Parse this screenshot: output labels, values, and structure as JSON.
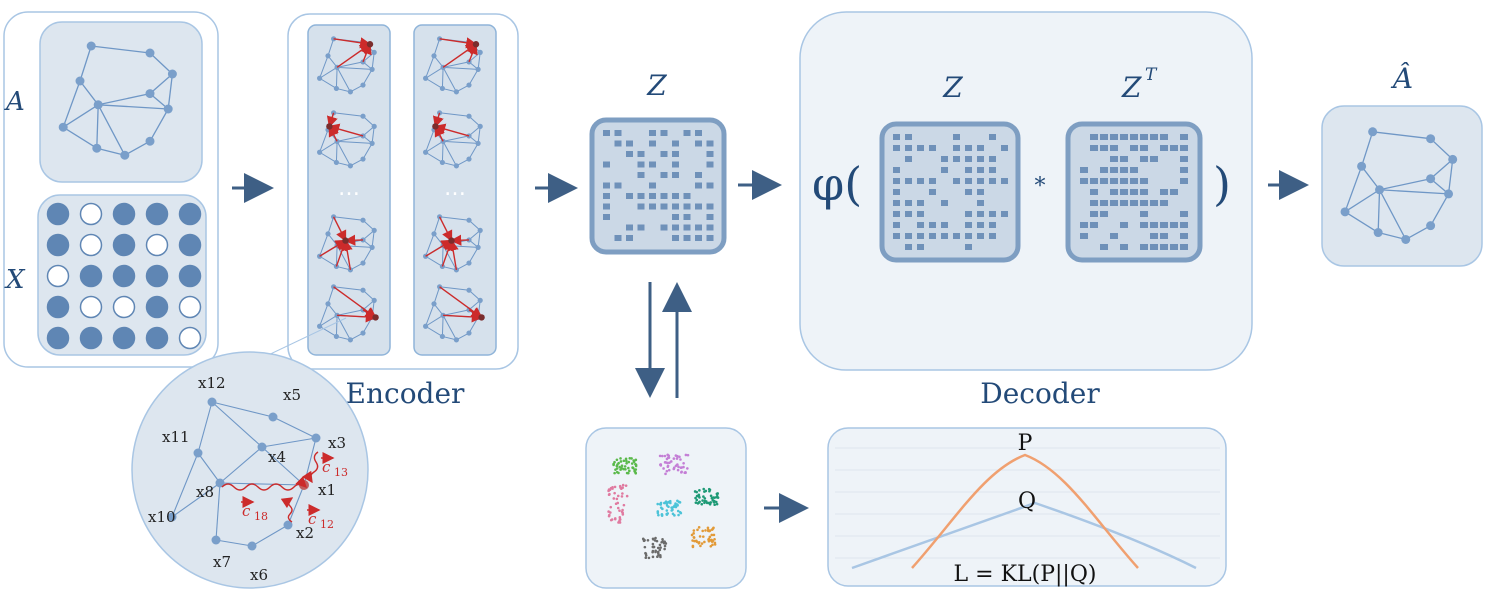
{
  "inputs": {
    "adjacency_label": "A",
    "features_label": "X",
    "feature_matrix": [
      [
        1,
        0,
        1,
        1,
        1
      ],
      [
        1,
        0,
        1,
        0,
        1
      ],
      [
        0,
        1,
        1,
        1,
        1
      ],
      [
        1,
        0,
        0,
        1,
        0
      ],
      [
        1,
        1,
        1,
        1,
        0
      ]
    ]
  },
  "encoder": {
    "label": "Encoder",
    "ellipsis": "…"
  },
  "zoom": {
    "nodes": [
      "x12",
      "x5",
      "x11",
      "x4",
      "x3",
      "x8",
      "x1",
      "x10",
      "x2",
      "x7",
      "x6"
    ],
    "c13": "c",
    "c13_sub": "13",
    "c18": "c",
    "c18_sub": "18",
    "c12": "c",
    "c12_sub": "12"
  },
  "latent": {
    "label": "Z"
  },
  "decoder": {
    "label": "Decoder",
    "phi_open": "φ(",
    "close": ")",
    "z_label": "Z",
    "zt_label": "Z",
    "zt_sup": "T",
    "mult": "*"
  },
  "output": {
    "label": "Â"
  },
  "loss": {
    "p_label": "P",
    "q_label": "Q",
    "formula": "L = KL(P||Q)"
  },
  "colors": {
    "panel_fill": "#dde6ef",
    "panel_stroke": "#8fb4d9",
    "node": "#7a9fca",
    "edge": "#6f97c6",
    "arrow": "#3e5f85",
    "red": "#cc2b2b",
    "p_curve": "#f0a070",
    "q_curve": "#a9c6e4",
    "clusters": [
      "#5ab94a",
      "#c47fd6",
      "#e07aa0",
      "#4cc3d8",
      "#1e9a76",
      "#e29a38",
      "#6b6b6b"
    ]
  }
}
